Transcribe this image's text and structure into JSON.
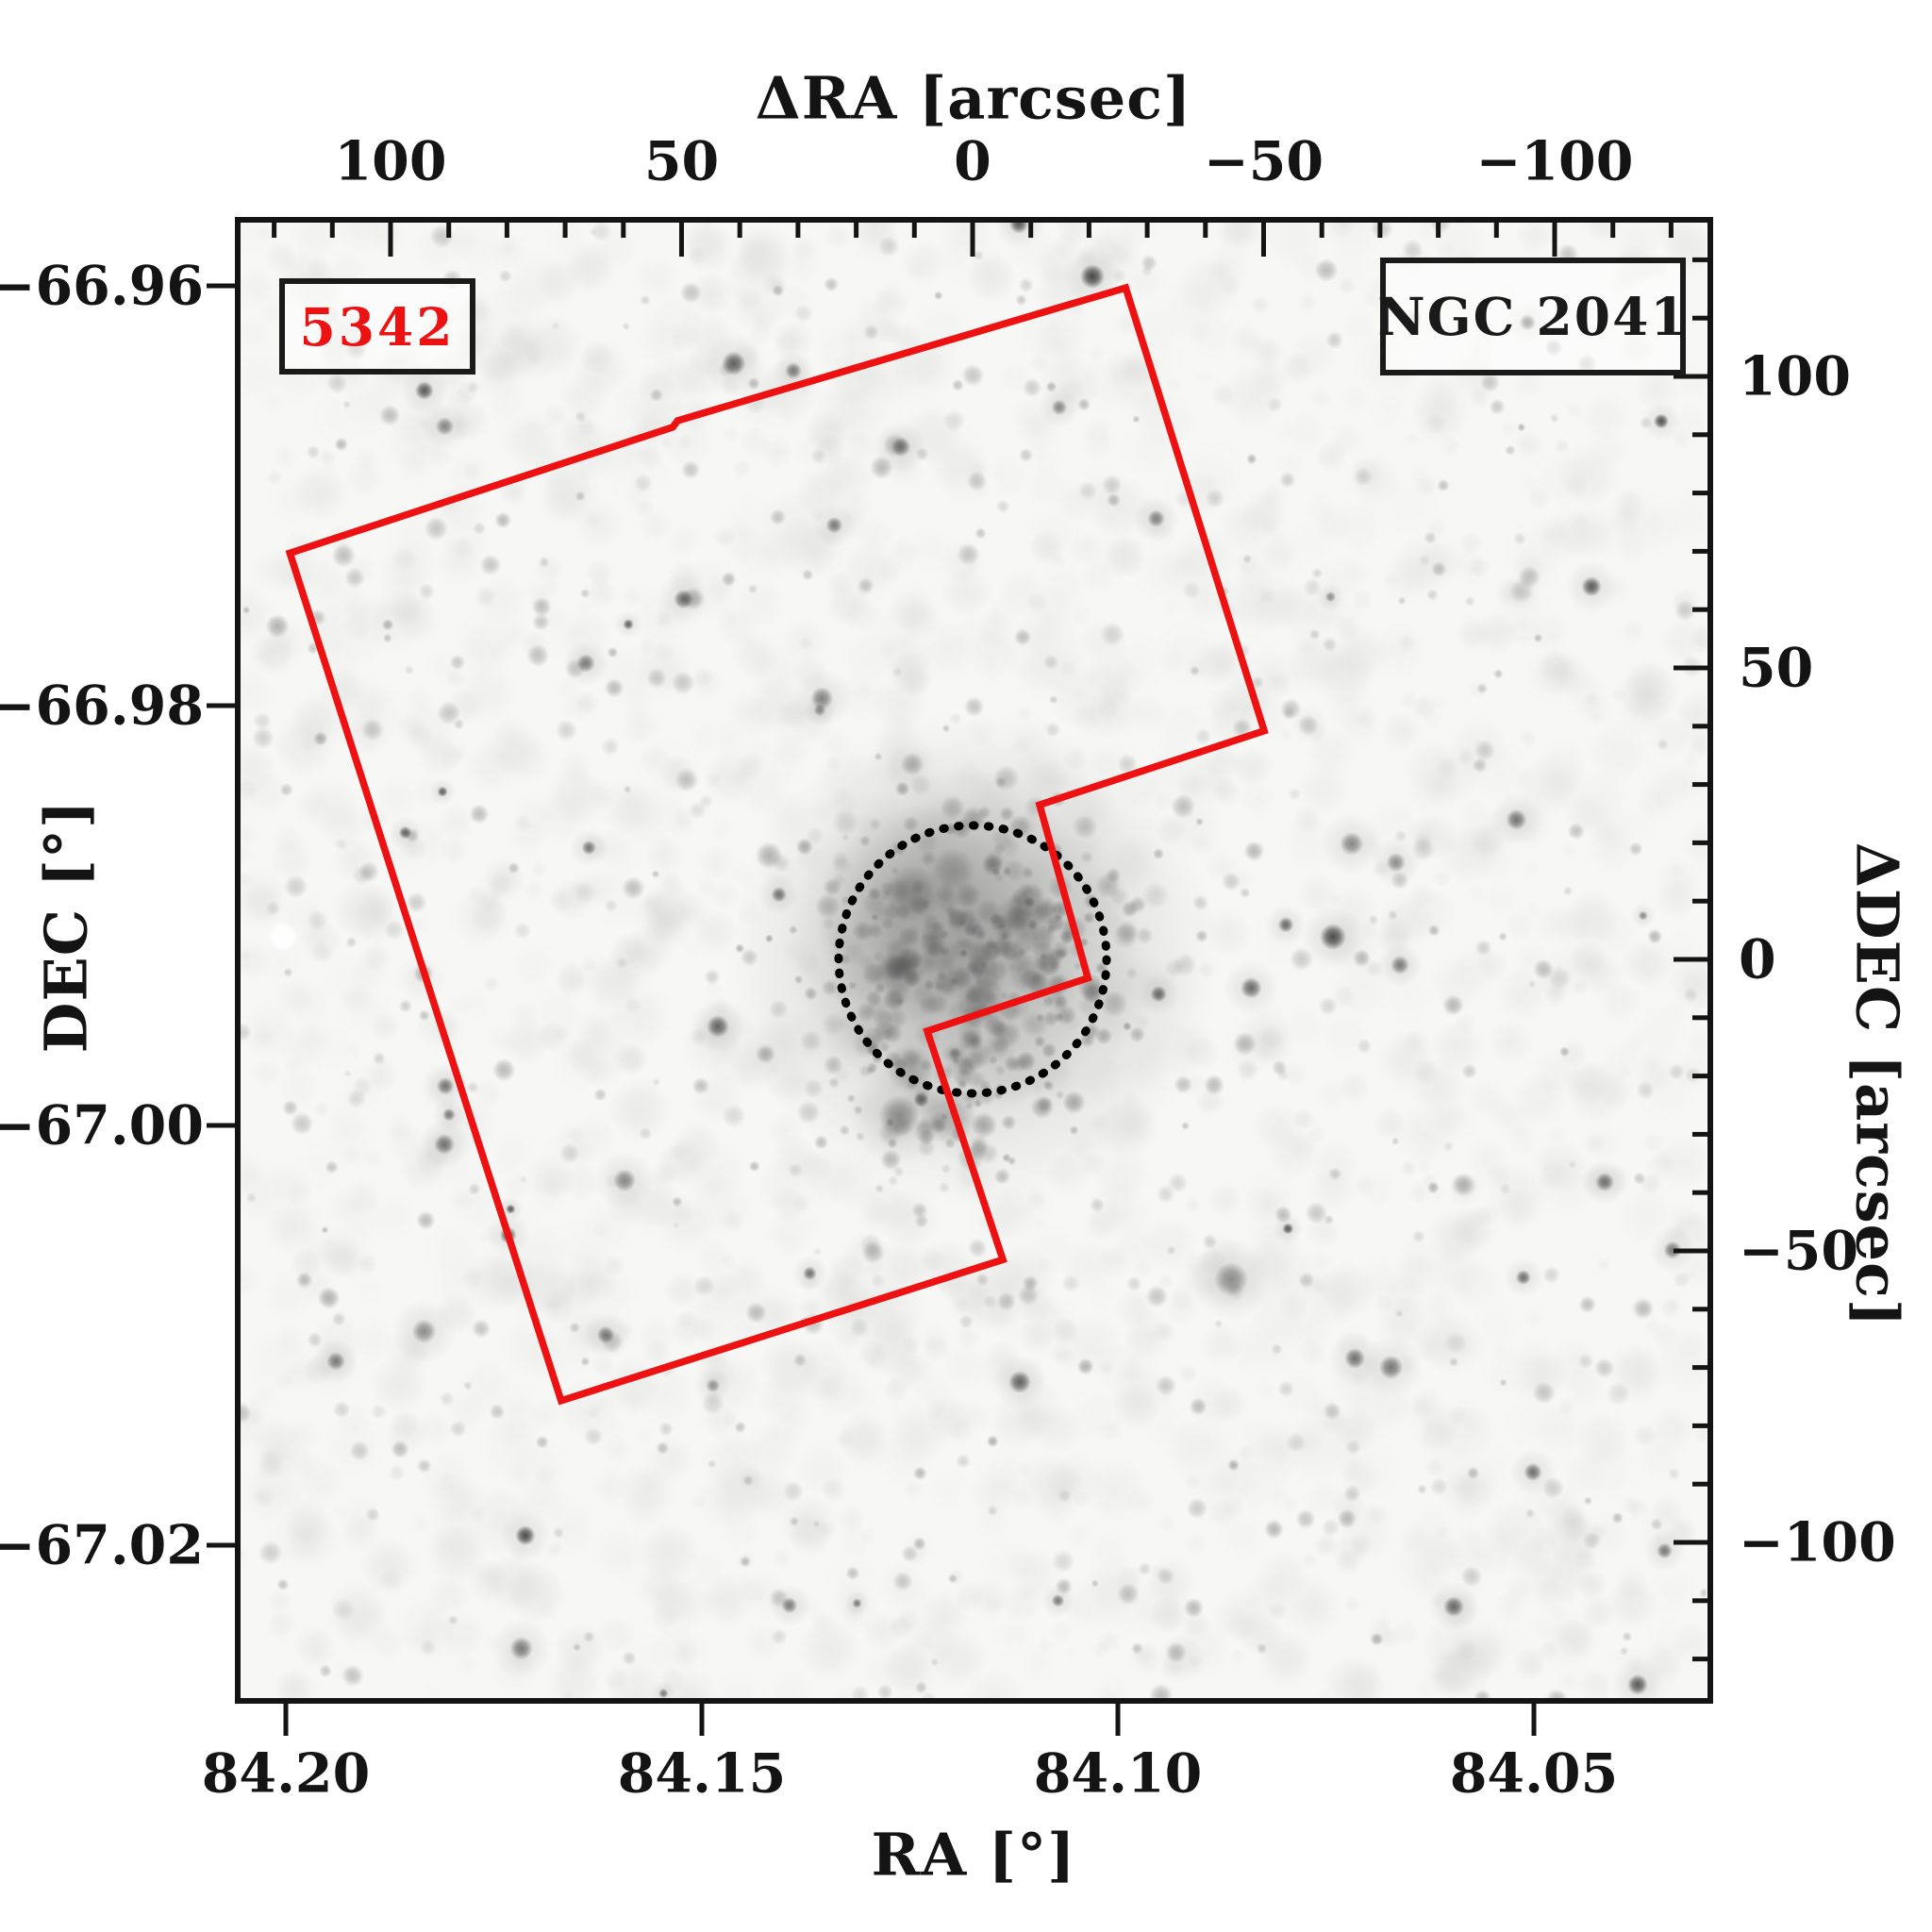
{
  "annotations": {
    "field_label": "5342",
    "object_name": "NGC 2041"
  },
  "axes": {
    "top": {
      "title": "ΔRA [arcsec]",
      "ticks": [
        {
          "label": "100",
          "value": 100
        },
        {
          "label": "50",
          "value": 50
        },
        {
          "label": "0",
          "value": 0
        },
        {
          "label": "−50",
          "value": -50
        },
        {
          "label": "−100",
          "value": -100
        }
      ],
      "minor_step_arcsec": 10
    },
    "right": {
      "title": "ΔDEC [arcsec]",
      "ticks": [
        {
          "label": "100",
          "value": 100
        },
        {
          "label": "50",
          "value": 50
        },
        {
          "label": "0",
          "value": 0
        },
        {
          "label": "−50",
          "value": -50
        },
        {
          "label": "−100",
          "value": -100
        }
      ],
      "minor_step_arcsec": 10
    },
    "bottom": {
      "title": "RA [°]",
      "ticks": [
        {
          "label": "84.20",
          "value": 84.2
        },
        {
          "label": "84.15",
          "value": 84.15
        },
        {
          "label": "84.10",
          "value": 84.1
        },
        {
          "label": "84.05",
          "value": 84.05
        }
      ]
    },
    "left": {
      "title": "DEC [°]",
      "ticks": [
        {
          "label": "−66.96",
          "value": -66.96
        },
        {
          "label": "−66.98",
          "value": -66.98
        },
        {
          "label": "−67.00",
          "value": -67.0
        },
        {
          "label": "−67.02",
          "value": -67.02
        }
      ]
    }
  },
  "colors": {
    "footprint": "#ed1111",
    "field_label_text": "#ed1111",
    "frame": "#141414",
    "circle": "#000000",
    "background": "#ffffff"
  },
  "chart_data": {
    "type": "scatter",
    "title": "NGC 2041",
    "subtitle": "Grayscale star-field finding chart of star cluster NGC 2041 with overlaid HST footprint (field 5342) and dotted cluster aperture circle",
    "xlabel": "RA [°]",
    "ylabel": "DEC [°]",
    "x2label": "ΔRA [arcsec]",
    "y2label": "ΔDEC [arcsec]",
    "x_range": [
      84.206,
      84.029
    ],
    "y_range": [
      -67.028,
      -66.957
    ],
    "x2_range": [
      126.3,
      -126.8
    ],
    "y2_range": [
      126.9,
      -127.2
    ],
    "x_ticks": [
      84.2,
      84.15,
      84.1,
      84.05
    ],
    "y_ticks": [
      -66.96,
      -66.98,
      -67.0,
      -67.02
    ],
    "x2_ticks": [
      100,
      50,
      0,
      -50,
      -100
    ],
    "y2_ticks": [
      100,
      50,
      0,
      -50,
      -100
    ],
    "grid": false,
    "image_content": "blurred grayscale sky image, dense dark star cluster at offset (0,0), field stars throughout",
    "overlays": {
      "footprint": {
        "label": "5342",
        "shape": "stair-stepped HST footprint polygon",
        "color": "#ed1111",
        "vertices_arcsec": [
          [
            117.3,
            69.7
          ],
          [
            51.5,
            91.3
          ],
          [
            50.7,
            92.4
          ],
          [
            -26.3,
            115.2
          ],
          [
            -50.1,
            39.2
          ],
          [
            -11.5,
            26.5
          ],
          [
            -19.8,
            -3.2
          ],
          [
            7.8,
            -12.3
          ],
          [
            -5.2,
            -51.5
          ],
          [
            70.7,
            -75.7
          ]
        ]
      },
      "cluster_circle": {
        "center_arcsec": [
          0,
          0
        ],
        "radius_arcsec": 23,
        "line_style": "dotted",
        "color": "#000000"
      }
    }
  }
}
